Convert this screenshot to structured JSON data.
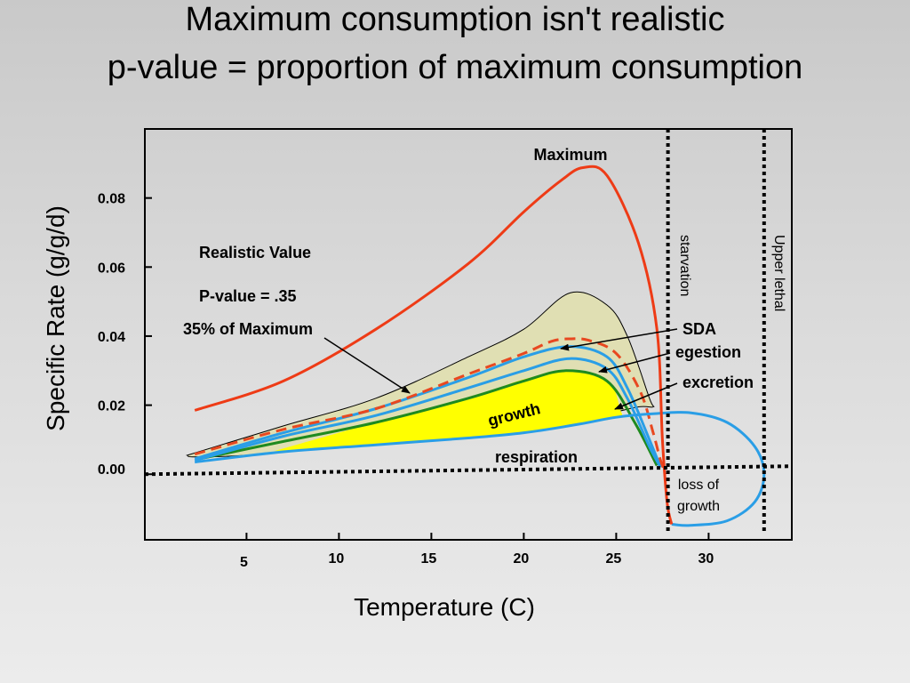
{
  "title_line1": "Maximum consumption isn't realistic",
  "title_line2": "p-value = proportion of maximum consumption",
  "chart_data": {
    "type": "line",
    "xlabel": "Temperature (C)",
    "ylabel": "Specific Rate (g/g/d)",
    "xlim": [
      -0.5,
      34.5
    ],
    "ylim": [
      -0.019,
      0.1
    ],
    "x_ticks": [
      5,
      10,
      15,
      20,
      25,
      30
    ],
    "x_tick_labels": [
      "5",
      "10",
      "15",
      "20",
      "25",
      "30"
    ],
    "y_ticks": [
      0.0,
      0.02,
      0.04,
      0.06,
      0.08
    ],
    "y_tick_labels": [
      "0.00",
      "0.02",
      "0.04",
      "0.06",
      "0.08"
    ],
    "grid": false,
    "colors": {
      "maximum": "#ee3b16",
      "realistic": "#e84820",
      "blue": "#2a9ee6",
      "growth_line": "#1f8a1f",
      "growth_fill": "#ffff00",
      "envelope_fill": "#e0dfb3"
    },
    "curves": {
      "maximum": {
        "x": [
          2.2,
          7,
          12,
          17,
          20,
          22,
          23.2,
          24.5,
          26.2,
          27.2,
          27.5,
          27.75,
          28.0
        ],
        "y": [
          0.0185,
          0.027,
          0.042,
          0.061,
          0.076,
          0.085,
          0.0888,
          0.0865,
          0.067,
          0.042,
          0.01,
          -0.008,
          -0.0145
        ]
      },
      "realistic_envelope": {
        "x": [
          1.8,
          7,
          12,
          17,
          20,
          22.5,
          24.5,
          25.6,
          26.8,
          27.0,
          26.2,
          24,
          20,
          15,
          10,
          5,
          2.2,
          1.8
        ],
        "y": [
          0.0055,
          0.014,
          0.022,
          0.034,
          0.042,
          0.0525,
          0.049,
          0.04,
          0.022,
          0.0195,
          0.0195,
          0.017,
          0.014,
          0.011,
          0.008,
          0.0055,
          0.005,
          0.0055
        ]
      },
      "realistic_dashed": {
        "x": [
          2.2,
          7,
          12,
          17,
          20,
          21.5,
          22.5,
          23.5,
          25,
          26.3,
          27.0,
          27.4,
          27.7
        ],
        "y": [
          0.0058,
          0.013,
          0.019,
          0.029,
          0.035,
          0.0385,
          0.0392,
          0.0388,
          0.035,
          0.024,
          0.012,
          0.004,
          0.0
        ],
        "style": "dashed"
      },
      "sda_egestion": {
        "x": [
          2.2,
          7,
          12,
          17,
          20,
          22.5,
          24.5,
          25.6,
          26.8,
          27.4
        ],
        "y": [
          0.0045,
          0.012,
          0.019,
          0.028,
          0.034,
          0.037,
          0.034,
          0.025,
          0.01,
          0.002
        ]
      },
      "egestion_excretion": {
        "x": [
          2.2,
          7,
          12,
          17,
          20,
          22.5,
          24.5,
          25.6,
          26.8,
          27.4
        ],
        "y": [
          0.004,
          0.011,
          0.017,
          0.025,
          0.03,
          0.0335,
          0.0305,
          0.022,
          0.008,
          0.002
        ]
      },
      "growth_upper": {
        "x": [
          2.5,
          7,
          12,
          17,
          20,
          22.3,
          24.5,
          26.0,
          27.2
        ],
        "y": [
          0.0045,
          0.0095,
          0.015,
          0.022,
          0.027,
          0.03,
          0.027,
          0.015,
          0.0025
        ]
      },
      "respiration": {
        "x": [
          2.2,
          7,
          12,
          17,
          20,
          23,
          25,
          27,
          29,
          31,
          32.5,
          33.0,
          32.5,
          31,
          29,
          28.0
        ],
        "y": [
          0.0035,
          0.0065,
          0.0085,
          0.0105,
          0.012,
          0.0145,
          0.0165,
          0.0175,
          0.0178,
          0.015,
          0.008,
          0.0,
          -0.008,
          -0.0135,
          -0.0148,
          -0.0145
        ]
      },
      "growth_fill": {
        "x": [
          6.5,
          12,
          17,
          20,
          22.3,
          24.5,
          25.2,
          25.1,
          23,
          20,
          17,
          12,
          6.5
        ],
        "y": [
          0.0067,
          0.015,
          0.022,
          0.0275,
          0.0298,
          0.0275,
          0.019,
          0.0165,
          0.0145,
          0.012,
          0.0105,
          0.0085,
          0.0067
        ]
      }
    },
    "thresholds": {
      "zero_line_y": 0.0,
      "starvation_x": 27.8,
      "upper_lethal_x": 33.0
    },
    "annotations": {
      "maximum": "Maximum",
      "realistic_value": "Realistic Value",
      "p_value": "P-value = .35",
      "pct_max": "35% of Maximum",
      "sda": "SDA",
      "egestion": "egestion",
      "excretion": "excretion",
      "growth": "growth",
      "respiration": "respiration",
      "starvation": "starvation",
      "upper_lethal": "Upper lethal",
      "loss_of_growth_1": "loss of",
      "loss_of_growth_2": "growth"
    }
  }
}
